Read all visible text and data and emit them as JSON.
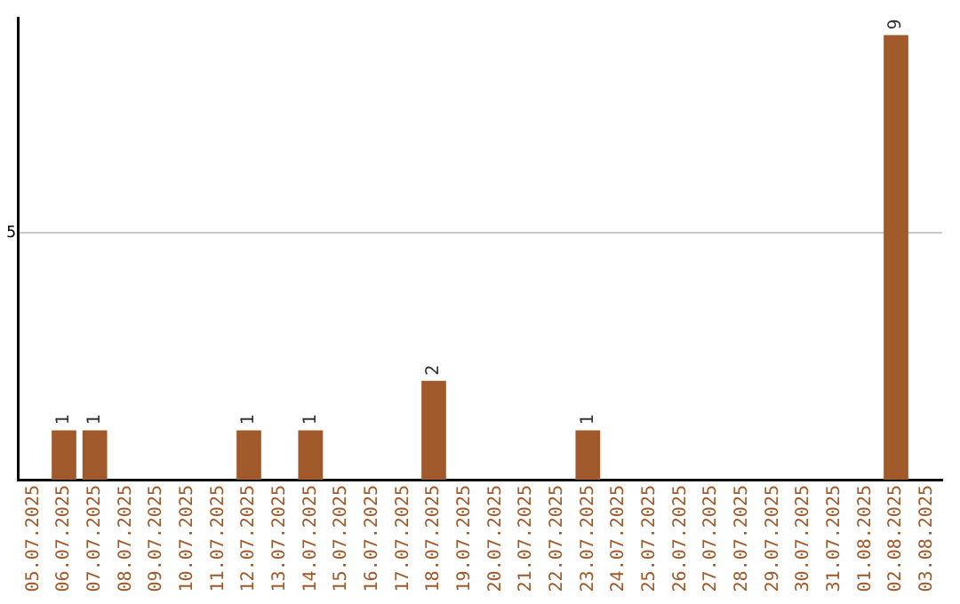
{
  "chart_data": {
    "type": "bar",
    "categories": [
      "05.07.2025",
      "06.07.2025",
      "07.07.2025",
      "08.07.2025",
      "09.07.2025",
      "10.07.2025",
      "11.07.2025",
      "12.07.2025",
      "13.07.2025",
      "14.07.2025",
      "15.07.2025",
      "16.07.2025",
      "17.07.2025",
      "18.07.2025",
      "19.07.2025",
      "20.07.2025",
      "21.07.2025",
      "22.07.2025",
      "23.07.2025",
      "24.07.2025",
      "25.07.2025",
      "26.07.2025",
      "27.07.2025",
      "28.07.2025",
      "29.07.2025",
      "30.07.2025",
      "31.07.2025",
      "01.08.2025",
      "02.08.2025",
      "03.08.2025"
    ],
    "values": [
      0,
      1,
      1,
      0,
      0,
      0,
      0,
      1,
      0,
      1,
      0,
      0,
      0,
      2,
      0,
      0,
      0,
      0,
      1,
      0,
      0,
      0,
      0,
      0,
      0,
      0,
      0,
      0,
      9,
      0
    ],
    "color": "#a0592a",
    "value_labels": [
      null,
      "1",
      "1",
      null,
      null,
      null,
      null,
      "1",
      null,
      "1",
      null,
      null,
      null,
      "2",
      null,
      null,
      null,
      null,
      "1",
      null,
      null,
      null,
      null,
      null,
      null,
      null,
      null,
      null,
      "9",
      null
    ],
    "ylim": [
      0,
      9.35
    ],
    "yticks": [
      5
    ],
    "grid": "y"
  }
}
